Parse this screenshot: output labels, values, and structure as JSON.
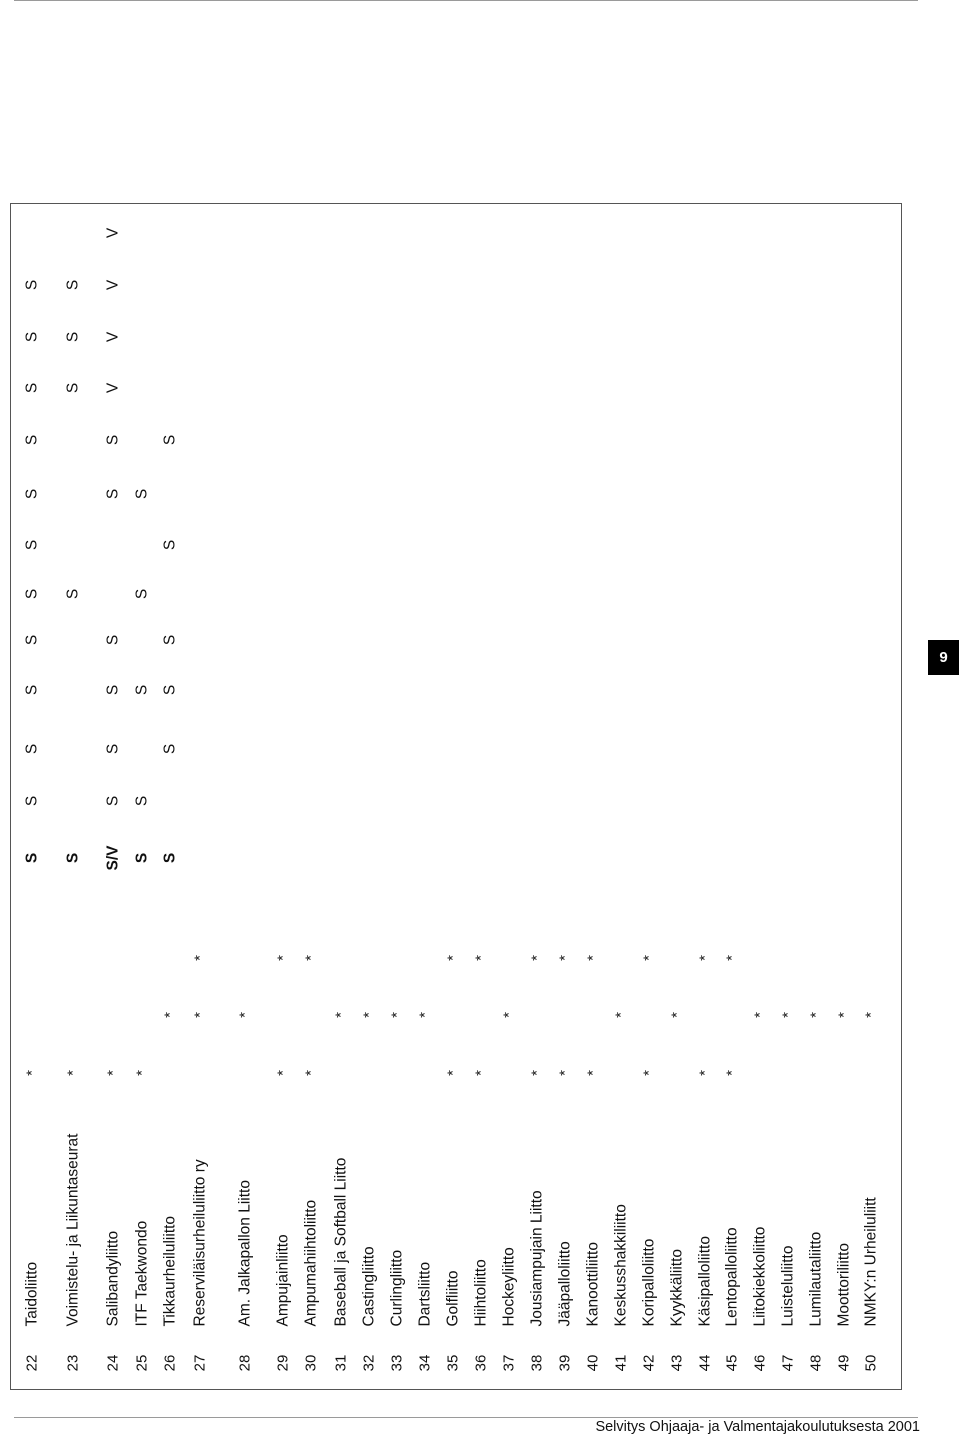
{
  "page_number": "9",
  "footer": "Selvitys Ohjaaja- ja Valmentajakoulutuksesta 2001",
  "rows": [
    {
      "num": "22",
      "name": "Taidoliitto",
      "stars": [
        "*",
        "",
        ""
      ],
      "marks": [
        "S",
        "S",
        "S",
        "S",
        "S",
        "S",
        "S",
        "S",
        "S",
        "S",
        "S",
        "S"
      ]
    },
    {
      "num": "23",
      "name": "Voimistelu- ja Liikuntaseurat",
      "stars": [
        "*",
        "",
        ""
      ],
      "marks": [
        "S",
        "",
        "",
        "",
        "",
        "S",
        "",
        "",
        "",
        "S",
        "S",
        "S"
      ]
    },
    {
      "num": "24",
      "name": "Salibandyliitto",
      "stars": [
        "*",
        "",
        ""
      ],
      "marks": [
        "S/V",
        "S",
        "S",
        "S",
        "S",
        "",
        "",
        "S",
        "S",
        "V",
        "V",
        "V",
        "V"
      ]
    },
    {
      "num": "25",
      "name": "ITF Taekwondo",
      "stars": [
        "*",
        "",
        ""
      ],
      "marks": [
        "S",
        "S",
        "",
        "S",
        "",
        "S",
        "",
        "S",
        "",
        "",
        "",
        "",
        ""
      ]
    },
    {
      "num": "26",
      "name": "Tikkaurheiluliitto",
      "stars": [
        "",
        "*",
        ""
      ],
      "marks": [
        "S",
        "",
        "S",
        "S",
        "S",
        "",
        "S",
        "",
        "S",
        "",
        "",
        "",
        ""
      ]
    },
    {
      "num": "27",
      "name": "Reserviläisurheiluliitto ry",
      "stars": [
        "",
        "*",
        "*"
      ],
      "marks": []
    },
    {
      "num": "28",
      "name": "Am. Jalkapallon Liitto",
      "stars": [
        "",
        "*",
        ""
      ],
      "marks": []
    },
    {
      "num": "29",
      "name": "Ampujainliitto",
      "stars": [
        "*",
        "",
        "*"
      ],
      "marks": []
    },
    {
      "num": "30",
      "name": "Ampumahiihtoliitto",
      "stars": [
        "*",
        "",
        "*"
      ],
      "marks": []
    },
    {
      "num": "31",
      "name": "Baseball ja Softball Liitto",
      "stars": [
        "",
        "*",
        ""
      ],
      "marks": []
    },
    {
      "num": "32",
      "name": "Castingliitto",
      "stars": [
        "",
        "*",
        ""
      ],
      "marks": []
    },
    {
      "num": "33",
      "name": "Curlingliitto",
      "stars": [
        "",
        "*",
        ""
      ],
      "marks": []
    },
    {
      "num": "34",
      "name": "Dartsliitto",
      "stars": [
        "",
        "*",
        ""
      ],
      "marks": []
    },
    {
      "num": "35",
      "name": "Golfliitto",
      "stars": [
        "*",
        "",
        "*"
      ],
      "marks": []
    },
    {
      "num": "36",
      "name": "Hiihtoliitto",
      "stars": [
        "*",
        "",
        "*"
      ],
      "marks": []
    },
    {
      "num": "37",
      "name": "Hockeyliitto",
      "stars": [
        "",
        "*",
        ""
      ],
      "marks": []
    },
    {
      "num": "38",
      "name": "Jousiampujain Liitto",
      "stars": [
        "*",
        "",
        "*"
      ],
      "marks": []
    },
    {
      "num": "39",
      "name": "Jääpalloliitto",
      "stars": [
        "*",
        "",
        "*"
      ],
      "marks": []
    },
    {
      "num": "40",
      "name": "Kanoottiliitto",
      "stars": [
        "*",
        "",
        "*"
      ],
      "marks": []
    },
    {
      "num": "41",
      "name": "Keskusshakkiliitto",
      "stars": [
        "",
        "*",
        ""
      ],
      "marks": []
    },
    {
      "num": "42",
      "name": "Koripalloliitto",
      "stars": [
        "*",
        "",
        "*"
      ],
      "marks": []
    },
    {
      "num": "43",
      "name": "Kyykkäliitto",
      "stars": [
        "",
        "*",
        ""
      ],
      "marks": []
    },
    {
      "num": "44",
      "name": "Käsipalloliitto",
      "stars": [
        "*",
        "",
        "*"
      ],
      "marks": []
    },
    {
      "num": "45",
      "name": "Lentopalloliitto",
      "stars": [
        "*",
        "",
        "*"
      ],
      "marks": []
    },
    {
      "num": "46",
      "name": "Liitokiekkoliitto",
      "stars": [
        "",
        "*",
        ""
      ],
      "marks": []
    },
    {
      "num": "47",
      "name": "Luisteluliitto",
      "stars": [
        "",
        "*",
        ""
      ],
      "marks": []
    },
    {
      "num": "48",
      "name": "Lumilautaliitto",
      "stars": [
        "",
        "*",
        ""
      ],
      "marks": []
    },
    {
      "num": "49",
      "name": "Moottoriliitto",
      "stars": [
        "",
        "*",
        ""
      ],
      "marks": []
    },
    {
      "num": "50",
      "name": "NMKY:n Urheiluliitt",
      "stars": [
        "",
        "*",
        ""
      ],
      "marks": []
    }
  ]
}
